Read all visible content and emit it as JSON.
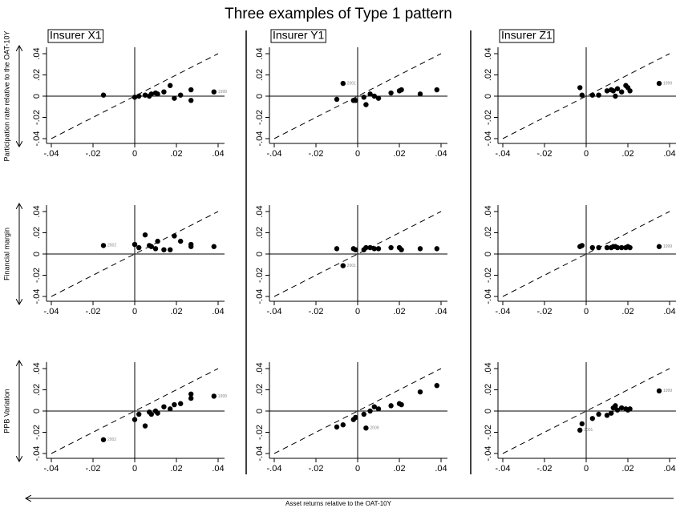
{
  "figure": {
    "title": "Three examples of Type 1 pattern",
    "xlabel": "Asset returns relative to the OAT-10Y"
  },
  "chart_data": [
    {
      "type": "scatter",
      "title": "Insurer X1",
      "ylabel": "Participation rate relative to the OAT-10Y",
      "x": [
        -0.015,
        0,
        0.002,
        0.005,
        0.007,
        0.008,
        0.01,
        0.011,
        0.014,
        0.017,
        0.019,
        0.022,
        0.027,
        0.027,
        0.038
      ],
      "values": [
        0.001,
        -0.001,
        0,
        0.001,
        0,
        0.002,
        0.003,
        0.002,
        0.004,
        0.01,
        -0.002,
        0.001,
        0.006,
        -0.004,
        0.004
      ],
      "labels": [
        null,
        null,
        null,
        null,
        null,
        null,
        null,
        null,
        null,
        null,
        null,
        null,
        null,
        null,
        "1999"
      ],
      "color": "#000000",
      "xlim": [
        -0.04,
        0.04
      ],
      "ylim": [
        -0.04,
        0.04
      ],
      "xticks": [
        {
          "value": -0.04,
          "label": "-.04"
        },
        {
          "value": -0.02,
          "label": "-.02"
        },
        0,
        {
          "value": 0.02,
          "label": ".02"
        },
        {
          "value": 0.04,
          "label": ".04"
        }
      ],
      "yticks": [
        {
          "value": -0.04,
          "label": "-.04"
        },
        {
          "value": -0.02,
          "label": "-.02"
        },
        0,
        {
          "value": 0.02,
          "label": ".02"
        },
        {
          "value": 0.04,
          "label": ".04"
        }
      ]
    },
    {
      "type": "scatter",
      "title": "Insurer Y1",
      "x": [
        -0.01,
        -0.007,
        -0.002,
        -0.001,
        0.003,
        0.004,
        0.006,
        0.008,
        0.01,
        0.016,
        0.02,
        0.021,
        0.03,
        0.038
      ],
      "values": [
        -0.003,
        0.012,
        -0.004,
        -0.004,
        -0.001,
        -0.008,
        0.002,
        0,
        -0.002,
        0.003,
        0.005,
        0.006,
        0.002,
        0.006
      ],
      "labels": [
        null,
        "2001",
        null,
        null,
        null,
        null,
        null,
        null,
        null,
        null,
        null,
        null,
        null,
        null
      ],
      "color": "#000000",
      "xlim": [
        -0.04,
        0.04
      ],
      "ylim": [
        -0.04,
        0.04
      ],
      "xticks": [
        {
          "value": -0.04,
          "label": "-.04"
        },
        {
          "value": -0.02,
          "label": "-.02"
        },
        0,
        {
          "value": 0.02,
          "label": ".02"
        },
        {
          "value": 0.04,
          "label": ".04"
        }
      ],
      "yticks": [
        {
          "value": -0.04,
          "label": "-.04"
        },
        {
          "value": -0.02,
          "label": "-.02"
        },
        0,
        {
          "value": 0.02,
          "label": ".02"
        },
        {
          "value": 0.04,
          "label": ".04"
        }
      ]
    },
    {
      "type": "scatter",
      "title": "Insurer Z1",
      "x": [
        -0.003,
        -0.002,
        0.003,
        0.006,
        0.01,
        0.012,
        0.013,
        0.014,
        0.015,
        0.017,
        0.019,
        0.02,
        0.021,
        0.035
      ],
      "values": [
        0.008,
        0.001,
        0.001,
        0.001,
        0.005,
        0.006,
        0.005,
        0,
        0.007,
        0.004,
        0.01,
        0.008,
        0.005,
        0.012
      ],
      "labels": [
        null,
        null,
        null,
        null,
        null,
        null,
        null,
        null,
        null,
        null,
        null,
        null,
        null,
        "1999"
      ],
      "color": "#000000",
      "xlim": [
        -0.04,
        0.04
      ],
      "ylim": [
        -0.04,
        0.04
      ],
      "xticks": [
        {
          "value": -0.04,
          "label": "-.04"
        },
        {
          "value": -0.02,
          "label": "-.02"
        },
        0,
        {
          "value": 0.02,
          "label": ".02"
        },
        {
          "value": 0.04,
          "label": ".04"
        }
      ],
      "yticks": [
        {
          "value": -0.04,
          "label": "-.04"
        },
        {
          "value": -0.02,
          "label": "-.02"
        },
        0,
        {
          "value": 0.02,
          "label": ".02"
        },
        {
          "value": 0.04,
          "label": ".04"
        }
      ]
    },
    {
      "type": "scatter",
      "ylabel": "Financial margin",
      "x": [
        -0.015,
        0,
        0.002,
        0.005,
        0.007,
        0.008,
        0.01,
        0.011,
        0.014,
        0.017,
        0.019,
        0.022,
        0.027,
        0.027,
        0.038
      ],
      "values": [
        0.008,
        0.009,
        0.006,
        0.018,
        0.008,
        0.007,
        0.005,
        0.012,
        0.004,
        0.004,
        0.017,
        0.012,
        0.009,
        0.007,
        0.007
      ],
      "labels": [
        "2002",
        null,
        null,
        null,
        null,
        null,
        null,
        null,
        null,
        null,
        null,
        null,
        null,
        null,
        null
      ],
      "color": "#000000",
      "xlim": [
        -0.04,
        0.04
      ],
      "ylim": [
        -0.04,
        0.04
      ],
      "xticks": [
        {
          "value": -0.04,
          "label": "-.04"
        },
        {
          "value": -0.02,
          "label": "-.02"
        },
        0,
        {
          "value": 0.02,
          "label": ".02"
        },
        {
          "value": 0.04,
          "label": ".04"
        }
      ],
      "yticks": [
        {
          "value": -0.04,
          "label": "-.04"
        },
        {
          "value": -0.02,
          "label": "-.02"
        },
        0,
        {
          "value": 0.02,
          "label": ".02"
        },
        {
          "value": 0.04,
          "label": ".04"
        }
      ]
    },
    {
      "type": "scatter",
      "x": [
        -0.01,
        -0.007,
        -0.002,
        -0.001,
        0.003,
        0.004,
        0.006,
        0.008,
        0.01,
        0.016,
        0.02,
        0.021,
        0.03,
        0.038
      ],
      "values": [
        0.005,
        -0.011,
        0.005,
        0.004,
        0.004,
        0.006,
        0.006,
        0.005,
        0.005,
        0.006,
        0.006,
        0.004,
        0.005,
        0.005
      ],
      "labels": [
        null,
        "2001",
        null,
        null,
        null,
        null,
        null,
        null,
        null,
        null,
        null,
        null,
        null,
        null
      ],
      "color": "#000000",
      "xlim": [
        -0.04,
        0.04
      ],
      "ylim": [
        -0.04,
        0.04
      ],
      "xticks": [
        {
          "value": -0.04,
          "label": "-.04"
        },
        {
          "value": -0.02,
          "label": "-.02"
        },
        0,
        {
          "value": 0.02,
          "label": ".02"
        },
        {
          "value": 0.04,
          "label": ".04"
        }
      ],
      "yticks": [
        {
          "value": -0.04,
          "label": "-.04"
        },
        {
          "value": -0.02,
          "label": "-.02"
        },
        0,
        {
          "value": 0.02,
          "label": ".02"
        },
        {
          "value": 0.04,
          "label": ".04"
        }
      ]
    },
    {
      "type": "scatter",
      "x": [
        -0.003,
        -0.002,
        0.003,
        0.006,
        0.01,
        0.012,
        0.013,
        0.014,
        0.015,
        0.017,
        0.019,
        0.02,
        0.021,
        0.035
      ],
      "values": [
        0.007,
        0.008,
        0.006,
        0.006,
        0.006,
        0.006,
        0.007,
        0.007,
        0.006,
        0.006,
        0.006,
        0.007,
        0.006,
        0.007
      ],
      "labels": [
        null,
        null,
        null,
        null,
        null,
        null,
        null,
        null,
        null,
        null,
        null,
        null,
        null,
        "1999"
      ],
      "color": "#000000",
      "xlim": [
        -0.04,
        0.04
      ],
      "ylim": [
        -0.04,
        0.04
      ],
      "xticks": [
        {
          "value": -0.04,
          "label": "-.04"
        },
        {
          "value": -0.02,
          "label": "-.02"
        },
        0,
        {
          "value": 0.02,
          "label": ".02"
        },
        {
          "value": 0.04,
          "label": ".04"
        }
      ],
      "yticks": [
        {
          "value": -0.04,
          "label": "-.04"
        },
        {
          "value": -0.02,
          "label": "-.02"
        },
        0,
        {
          "value": 0.02,
          "label": ".02"
        },
        {
          "value": 0.04,
          "label": ".04"
        }
      ]
    },
    {
      "type": "scatter",
      "ylabel": "PPB Variation",
      "x": [
        -0.015,
        0,
        0.002,
        0.005,
        0.007,
        0.008,
        0.01,
        0.011,
        0.014,
        0.017,
        0.019,
        0.022,
        0.027,
        0.027,
        0.038
      ],
      "values": [
        -0.027,
        -0.008,
        -0.003,
        -0.014,
        -0.001,
        -0.003,
        0,
        -0.002,
        0.004,
        0.002,
        0.006,
        0.007,
        0.016,
        0.012,
        0.014
      ],
      "labels": [
        "2002",
        null,
        null,
        null,
        null,
        null,
        null,
        null,
        null,
        null,
        null,
        null,
        null,
        null,
        "1999"
      ],
      "color": "#000000",
      "xlim": [
        -0.04,
        0.04
      ],
      "ylim": [
        -0.04,
        0.04
      ],
      "xticks": [
        {
          "value": -0.04,
          "label": "-.04"
        },
        {
          "value": -0.02,
          "label": "-.02"
        },
        0,
        {
          "value": 0.02,
          "label": ".02"
        },
        {
          "value": 0.04,
          "label": ".04"
        }
      ],
      "yticks": [
        {
          "value": -0.04,
          "label": "-.04"
        },
        {
          "value": -0.02,
          "label": "-.02"
        },
        0,
        {
          "value": 0.02,
          "label": ".02"
        },
        {
          "value": 0.04,
          "label": ".04"
        }
      ]
    },
    {
      "type": "scatter",
      "x": [
        -0.01,
        -0.007,
        -0.002,
        -0.001,
        0.003,
        0.004,
        0.006,
        0.008,
        0.01,
        0.016,
        0.02,
        0.021,
        0.03,
        0.038
      ],
      "values": [
        -0.015,
        -0.013,
        -0.008,
        -0.006,
        -0.003,
        -0.016,
        0,
        0.004,
        0.002,
        0.005,
        0.007,
        0.006,
        0.018,
        0.024
      ],
      "labels": [
        null,
        null,
        null,
        null,
        null,
        "2009",
        null,
        null,
        null,
        null,
        null,
        null,
        null,
        null
      ],
      "color": "#000000",
      "xlim": [
        -0.04,
        0.04
      ],
      "ylim": [
        -0.04,
        0.04
      ],
      "xticks": [
        {
          "value": -0.04,
          "label": "-.04"
        },
        {
          "value": -0.02,
          "label": "-.02"
        },
        0,
        {
          "value": 0.02,
          "label": ".02"
        },
        {
          "value": 0.04,
          "label": ".04"
        }
      ],
      "yticks": [
        {
          "value": -0.04,
          "label": "-.04"
        },
        {
          "value": -0.02,
          "label": "-.02"
        },
        0,
        {
          "value": 0.02,
          "label": ".02"
        },
        {
          "value": 0.04,
          "label": ".04"
        }
      ]
    },
    {
      "type": "scatter",
      "x": [
        -0.003,
        -0.002,
        0.003,
        0.006,
        0.01,
        0.012,
        0.013,
        0.014,
        0.015,
        0.017,
        0.019,
        0.02,
        0.021,
        0.035
      ],
      "values": [
        -0.018,
        -0.012,
        -0.007,
        -0.003,
        -0.004,
        -0.002,
        0.003,
        0.005,
        0.001,
        0.003,
        0.002,
        0.001,
        0.002,
        0.019
      ],
      "labels": [
        "2001",
        null,
        null,
        null,
        null,
        null,
        null,
        null,
        null,
        null,
        null,
        null,
        null,
        "1999"
      ],
      "color": "#000000",
      "xlim": [
        -0.04,
        0.04
      ],
      "ylim": [
        -0.04,
        0.04
      ],
      "xticks": [
        {
          "value": -0.04,
          "label": "-.04"
        },
        {
          "value": -0.02,
          "label": "-.02"
        },
        0,
        {
          "value": 0.02,
          "label": ".02"
        },
        {
          "value": 0.04,
          "label": ".04"
        }
      ],
      "yticks": [
        {
          "value": -0.04,
          "label": "-.04"
        },
        {
          "value": -0.02,
          "label": "-.02"
        },
        0,
        {
          "value": 0.02,
          "label": ".02"
        },
        {
          "value": 0.04,
          "label": ".04"
        }
      ]
    }
  ]
}
